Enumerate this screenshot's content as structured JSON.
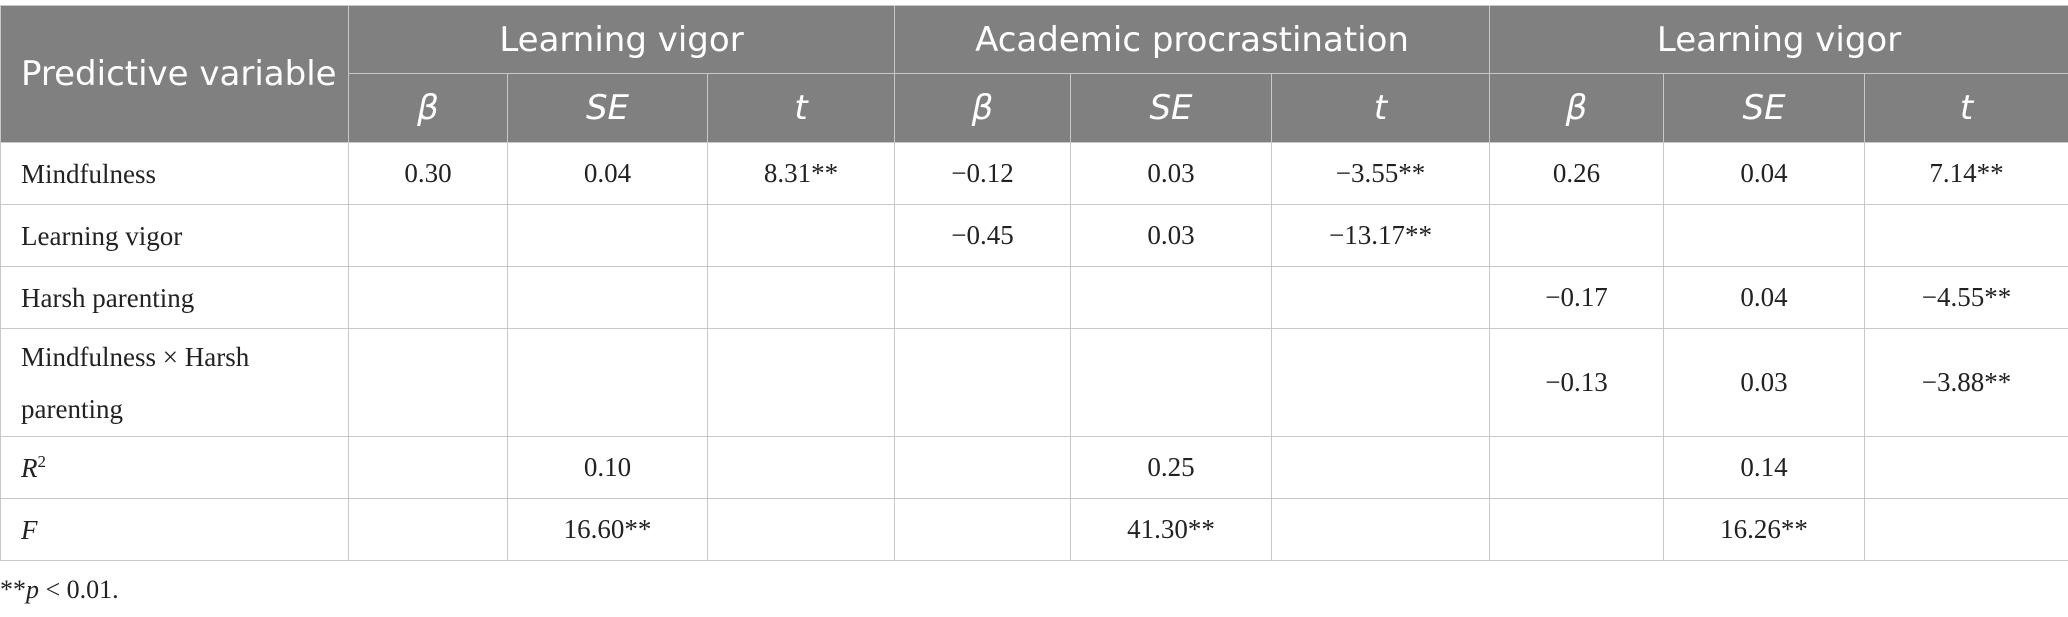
{
  "header": {
    "corner_label": "Predictive variable",
    "groups": [
      "Learning vigor",
      "Academic procrastination",
      "Learning vigor"
    ],
    "subheaders": [
      "β",
      "SE",
      "t",
      "β",
      "SE",
      "t",
      "β",
      "SE",
      "t"
    ]
  },
  "rows": [
    {
      "label": "Mindfulness",
      "cells": [
        "0.30",
        "0.04",
        "8.31**",
        "−0.12",
        "0.03",
        "−3.55**",
        "0.26",
        "0.04",
        "7.14**"
      ]
    },
    {
      "label": "Learning vigor",
      "cells": [
        "",
        "",
        "",
        "−0.45",
        "0.03",
        "−13.17**",
        "",
        "",
        ""
      ]
    },
    {
      "label": "Harsh parenting",
      "cells": [
        "",
        "",
        "",
        "",
        "",
        "",
        "−0.17",
        "0.04",
        "−4.55**"
      ]
    },
    {
      "label_part1": "Mindfulness × Harsh",
      "label_part2": "parenting",
      "cells": [
        "",
        "",
        "",
        "",
        "",
        "",
        "−0.13",
        "0.03",
        "−3.88**"
      ]
    }
  ],
  "stats": {
    "r2": {
      "symbol": "R",
      "superscript": "2",
      "values": [
        "0.10",
        "0.25",
        "0.14"
      ]
    },
    "f": {
      "symbol": "F",
      "values": [
        "16.60**",
        "41.30**",
        "16.26**"
      ]
    }
  },
  "footnote": {
    "stars": "**",
    "p_symbol": "p",
    "text": " < 0.01."
  }
}
